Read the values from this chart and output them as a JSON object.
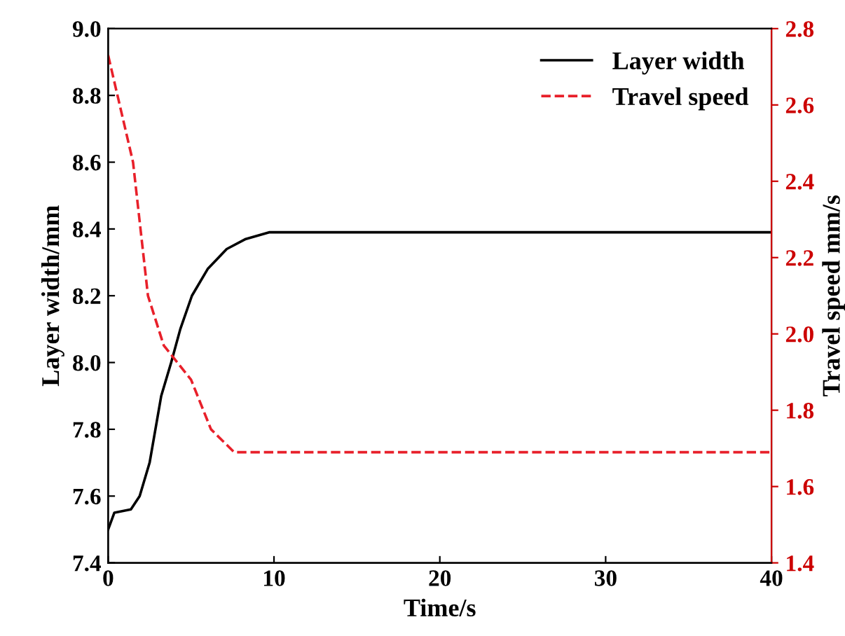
{
  "chart_data": {
    "type": "line",
    "xlabel": "Time/s",
    "ylabel": "Layer width/mm",
    "y2label": "Travel speed mm/s",
    "xlim": [
      0,
      40
    ],
    "xticks": [
      0,
      10,
      20,
      30,
      40
    ],
    "ylim": [
      7.4,
      9.0
    ],
    "yticks": [
      7.4,
      7.6,
      7.8,
      {
        "value": 8,
        "label": "8.0"
      },
      8.2,
      8.4,
      8.6,
      8.8,
      {
        "value": 9,
        "label": "9.0"
      }
    ],
    "y2lim": [
      1.4,
      2.8
    ],
    "y2ticks": [
      1.4,
      1.6,
      1.8,
      {
        "value": 2,
        "label": "2.0"
      },
      2.2,
      2.4,
      2.6,
      2.8
    ],
    "grid": false,
    "legend": "top right",
    "series": [
      {
        "name": "Layer width",
        "color": "#000000",
        "line_style": "solid",
        "x": [
          0,
          0.37,
          1.37,
          1.9,
          2.5,
          3.2,
          3.8,
          4.35,
          5.05,
          6.0,
          7.15,
          8.3,
          9.7,
          40
        ],
        "values": [
          7.5,
          7.55,
          7.56,
          7.6,
          7.7,
          7.9,
          8.0,
          8.1,
          8.2,
          8.28,
          8.34,
          8.37,
          8.39,
          8.39
        ]
      },
      {
        "name": "Travel speed",
        "color": "#e8202a",
        "line_style": "dashed",
        "axis": "y2",
        "x": [
          0,
          1.5,
          2.4,
          3.35,
          5.0,
          6.2,
          7.6,
          40
        ],
        "values": [
          2.73,
          2.45,
          2.1,
          1.97,
          1.88,
          1.75,
          1.69,
          1.69
        ]
      }
    ]
  }
}
